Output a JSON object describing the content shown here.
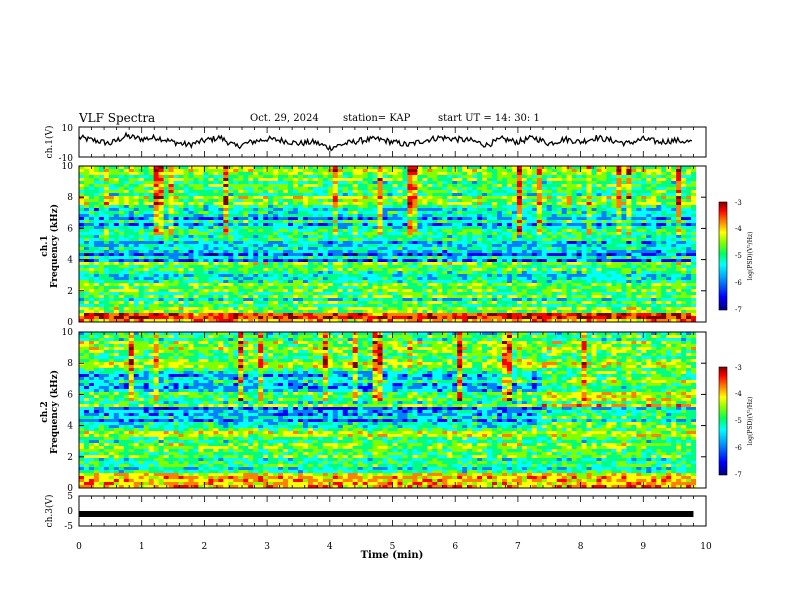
{
  "header": {
    "title": "VLF Spectra",
    "date": "Oct. 29, 2024",
    "station": "station= KAP",
    "start_ut": "start UT =  14: 30: 1"
  },
  "chart_data": [
    {
      "type": "line",
      "panel": "ch1-waveform",
      "ylabel": "ch.1(V)",
      "ylim": [
        -10,
        10
      ],
      "yticks": [
        "10",
        "-10"
      ],
      "xlim": [
        0,
        10
      ],
      "x": [
        0,
        0.25,
        0.5,
        0.75,
        1,
        1.25,
        1.5,
        1.75,
        2,
        2.25,
        2.5,
        2.75,
        3,
        3.25,
        3.5,
        3.75,
        4,
        4.25,
        4.5,
        4.75,
        5,
        5.25,
        5.5,
        5.75,
        6,
        6.25,
        6.5,
        6.75,
        7,
        7.25,
        7.5,
        7.75,
        8,
        8.25,
        8.5,
        8.75,
        9,
        9.25,
        9.5,
        9.8
      ],
      "y": [
        3,
        1,
        -1,
        4,
        2,
        3,
        0,
        -2,
        1,
        3,
        -3,
        0,
        2,
        1,
        -1,
        0,
        -4,
        -1,
        1,
        2,
        0,
        -2,
        1,
        3,
        2,
        1,
        -2,
        2,
        0,
        3,
        -1,
        2,
        0,
        3,
        1,
        -1,
        2,
        0,
        1,
        0
      ]
    },
    {
      "type": "heatmap",
      "panel": "ch1-spectrogram",
      "ylabel": "ch.1",
      "ylabel2": "Frequency (kHz)",
      "ylim": [
        0,
        10
      ],
      "yticks": [
        "0",
        "2",
        "4",
        "6",
        "8",
        "10"
      ],
      "xlim": [
        0,
        10
      ],
      "colorbar": {
        "range": [
          -7,
          -3
        ],
        "ticks": [
          "-3",
          "-4",
          "-5",
          "-6",
          "-7"
        ],
        "label": "log(PSD)(V²/Hz)"
      }
    },
    {
      "type": "heatmap",
      "panel": "ch2-spectrogram",
      "ylabel": "ch.2",
      "ylabel2": "Frequency (kHz)",
      "ylim": [
        0,
        10
      ],
      "yticks": [
        "0",
        "2",
        "4",
        "6",
        "8",
        "10"
      ],
      "xlim": [
        0,
        10
      ],
      "colorbar": {
        "range": [
          -7,
          -3
        ],
        "ticks": [
          "-3",
          "-4",
          "-5",
          "-6",
          "-7"
        ],
        "label": "log(PSD)(V²/Hz)"
      }
    },
    {
      "type": "line",
      "panel": "ch3-waveform",
      "ylabel": "ch.3(V)",
      "ylim": [
        -5,
        5
      ],
      "yticks": [
        "5",
        "0",
        "-5"
      ],
      "xlim": [
        0,
        10
      ],
      "xticks": [
        "0",
        "1",
        "2",
        "3",
        "4",
        "5",
        "6",
        "7",
        "8",
        "9",
        "10"
      ],
      "xlabel": "Time (min)",
      "x": [
        0,
        9.8
      ],
      "y": [
        -1,
        -1
      ]
    }
  ],
  "colors": {
    "colormap": [
      "#00007f",
      "#0000ff",
      "#0080ff",
      "#00ffff",
      "#00ff80",
      "#80ff00",
      "#ffff00",
      "#ff8000",
      "#ff0000",
      "#7f0000"
    ],
    "line": "#000000"
  }
}
